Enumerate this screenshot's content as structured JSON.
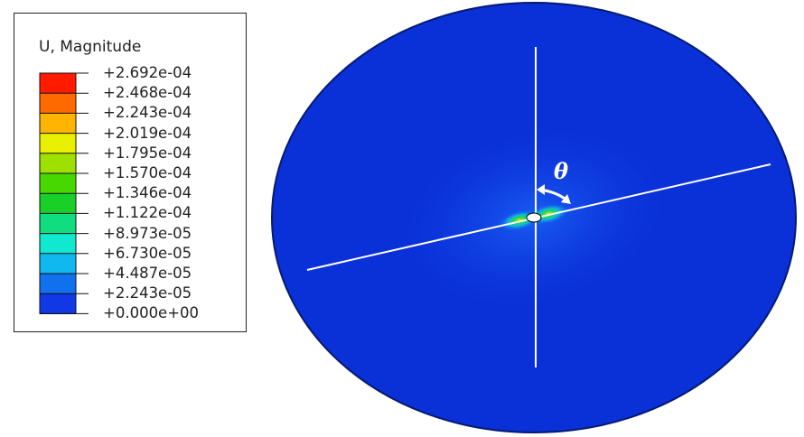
{
  "legend": {
    "title": "U, Magnitude",
    "tick_labels": [
      "+2.692e-04",
      "+2.468e-04",
      "+2.243e-04",
      "+2.019e-04",
      "+1.795e-04",
      "+1.570e-04",
      "+1.346e-04",
      "+1.122e-04",
      "+8.973e-05",
      "+6.730e-05",
      "+4.487e-05",
      "+2.243e-05",
      "+0.000e+00"
    ],
    "band_colors": [
      "#ff1a00",
      "#ff6a00",
      "#ffb400",
      "#e8f000",
      "#9ee000",
      "#46d800",
      "#18d028",
      "#10dc80",
      "#10e8d0",
      "#10b8f0",
      "#1070ee",
      "#1038e6"
    ]
  },
  "plot": {
    "background_color": "#0a30d8",
    "angle_label": "θ"
  }
}
